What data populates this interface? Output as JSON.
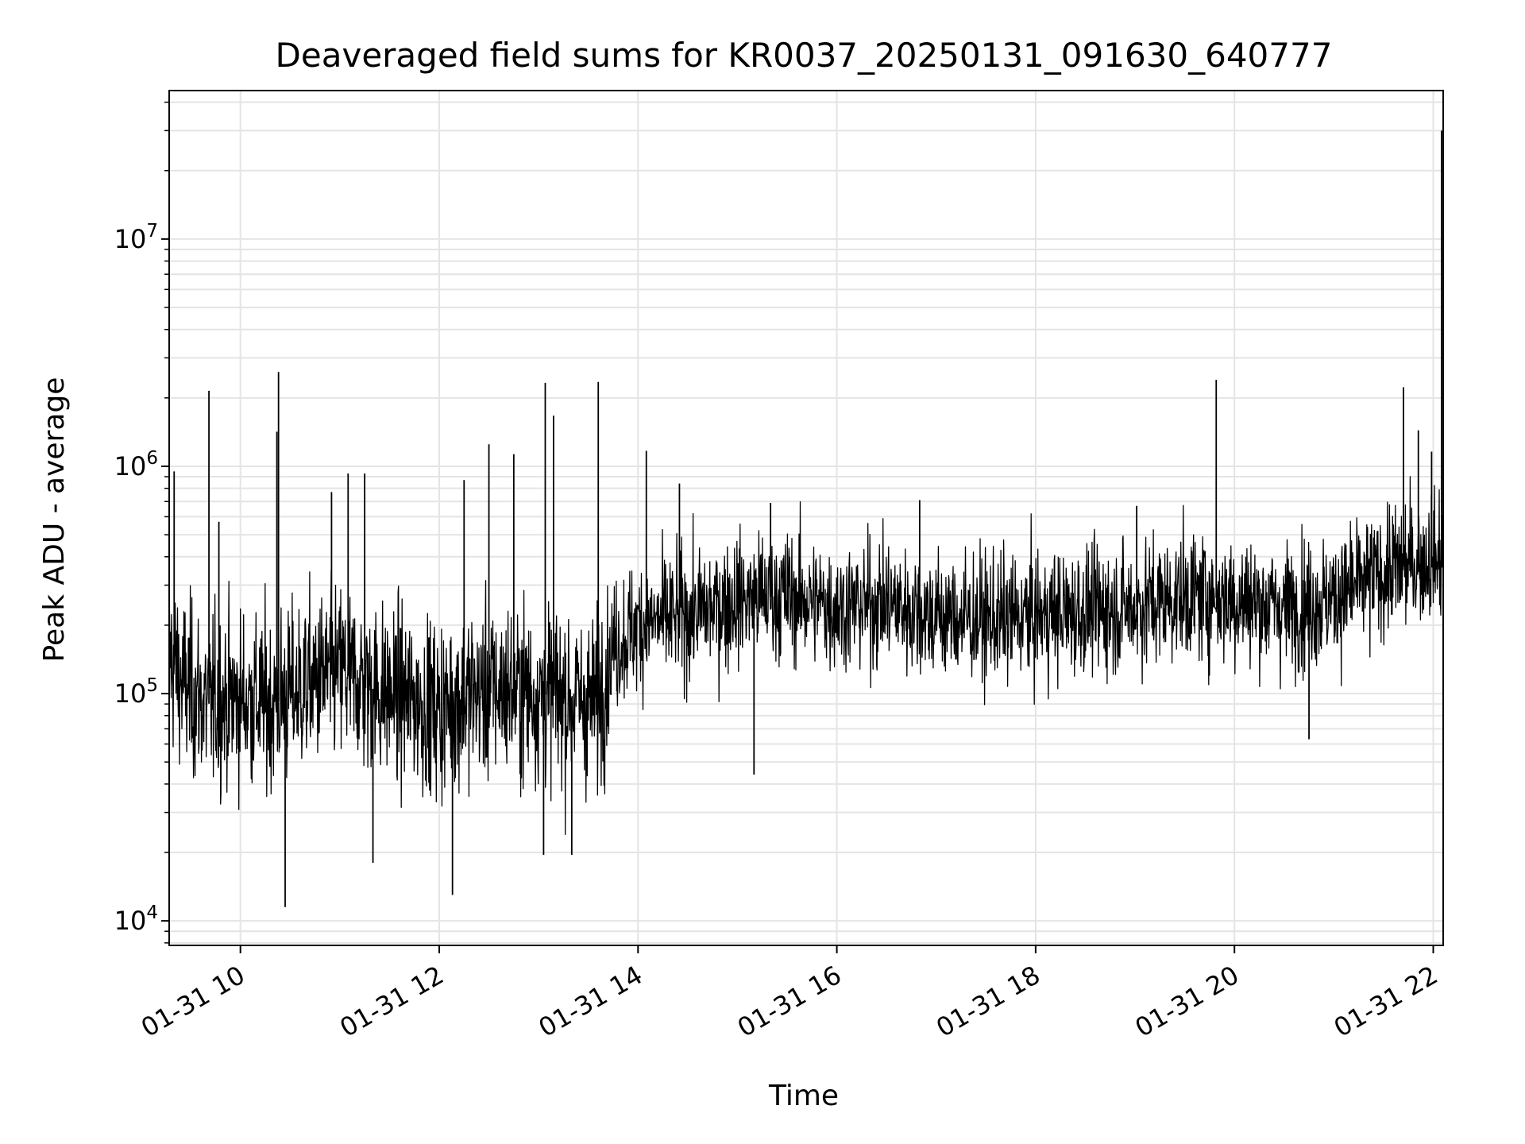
{
  "chart_data": {
    "type": "line",
    "title": "Deaveraged field sums for KR0037_20250131_091630_640777",
    "xlabel": "Time",
    "ylabel": "Peak ADU - average",
    "yscale": "log",
    "grid": true,
    "xlim": [
      "01-31 09:17",
      "01-31 22:06"
    ],
    "ylim": [
      7800,
      45000000
    ],
    "x_ticks": [
      {
        "label": "01-31 10",
        "hour": 10
      },
      {
        "label": "01-31 12",
        "hour": 12
      },
      {
        "label": "01-31 14",
        "hour": 14
      },
      {
        "label": "01-31 16",
        "hour": 16
      },
      {
        "label": "01-31 18",
        "hour": 18
      },
      {
        "label": "01-31 20",
        "hour": 20
      },
      {
        "label": "01-31 22",
        "hour": 22
      }
    ],
    "y_ticks": [
      {
        "base": "10",
        "exp": "4",
        "value": 10000
      },
      {
        "base": "10",
        "exp": "5",
        "value": 100000
      },
      {
        "base": "10",
        "exp": "6",
        "value": 1000000
      },
      {
        "base": "10",
        "exp": "7",
        "value": 10000000
      }
    ],
    "series_color": "#000000",
    "series": [
      {
        "points": [
          [
            "01-31 09:17",
            150000
          ],
          [
            "01-31 09:25",
            110000
          ],
          [
            "01-31 09:40",
            90000
          ],
          [
            "01-31 10:00",
            95000
          ],
          [
            "01-31 10:20",
            90000
          ],
          [
            "01-31 10:40",
            110000
          ],
          [
            "01-31 11:00",
            125000
          ],
          [
            "01-31 11:20",
            105000
          ],
          [
            "01-31 11:40",
            95000
          ],
          [
            "01-31 12:00",
            85000
          ],
          [
            "01-31 12:20",
            100000
          ],
          [
            "01-31 12:40",
            105000
          ],
          [
            "01-31 13:00",
            100000
          ],
          [
            "01-31 13:20",
            95000
          ],
          [
            "01-31 13:35",
            90000
          ],
          [
            "01-31 13:45",
            160000
          ],
          [
            "01-31 14:00",
            200000
          ],
          [
            "01-31 14:30",
            220000
          ],
          [
            "01-31 15:00",
            260000
          ],
          [
            "01-31 15:30",
            270000
          ],
          [
            "01-31 16:00",
            240000
          ],
          [
            "01-31 16:30",
            250000
          ],
          [
            "01-31 17:00",
            220000
          ],
          [
            "01-31 17:30",
            210000
          ],
          [
            "01-31 18:00",
            220000
          ],
          [
            "01-31 18:30",
            230000
          ],
          [
            "01-31 19:00",
            240000
          ],
          [
            "01-31 19:30",
            270000
          ],
          [
            "01-31 20:00",
            260000
          ],
          [
            "01-31 20:30",
            240000
          ],
          [
            "01-31 21:00",
            260000
          ],
          [
            "01-31 21:30",
            340000
          ],
          [
            "01-31 22:00",
            400000
          ],
          [
            "01-31 22:06",
            380000
          ]
        ],
        "spikes": [
          [
            "01-31 09:20",
            950000
          ],
          [
            "01-31 09:41",
            2150000
          ],
          [
            "01-31 09:47",
            570000
          ],
          [
            "01-31 10:22",
            1420000
          ],
          [
            "01-31 10:23",
            2600000
          ],
          [
            "01-31 10:27",
            11500
          ],
          [
            "01-31 10:55",
            770000
          ],
          [
            "01-31 11:05",
            930000
          ],
          [
            "01-31 11:15",
            930000
          ],
          [
            "01-31 11:20",
            18000
          ],
          [
            "01-31 12:08",
            13000
          ],
          [
            "01-31 12:15",
            870000
          ],
          [
            "01-31 12:30",
            1250000
          ],
          [
            "01-31 12:45",
            1130000
          ],
          [
            "01-31 13:04",
            2330000
          ],
          [
            "01-31 13:09",
            1670000
          ],
          [
            "01-31 13:03",
            19500
          ],
          [
            "01-31 13:20",
            19500
          ],
          [
            "01-31 13:36",
            2350000
          ],
          [
            "01-31 14:05",
            1170000
          ],
          [
            "01-31 14:25",
            840000
          ],
          [
            "01-31 15:10",
            44000
          ],
          [
            "01-31 15:20",
            690000
          ],
          [
            "01-31 16:50",
            710000
          ],
          [
            "01-31 19:01",
            670000
          ],
          [
            "01-31 19:49",
            2400000
          ],
          [
            "01-31 20:45",
            63000
          ],
          [
            "01-31 21:42",
            2230000
          ],
          [
            "01-31 21:51",
            1440000
          ],
          [
            "01-31 21:59",
            1160000
          ],
          [
            "01-31 22:05",
            30000000
          ]
        ]
      }
    ]
  }
}
